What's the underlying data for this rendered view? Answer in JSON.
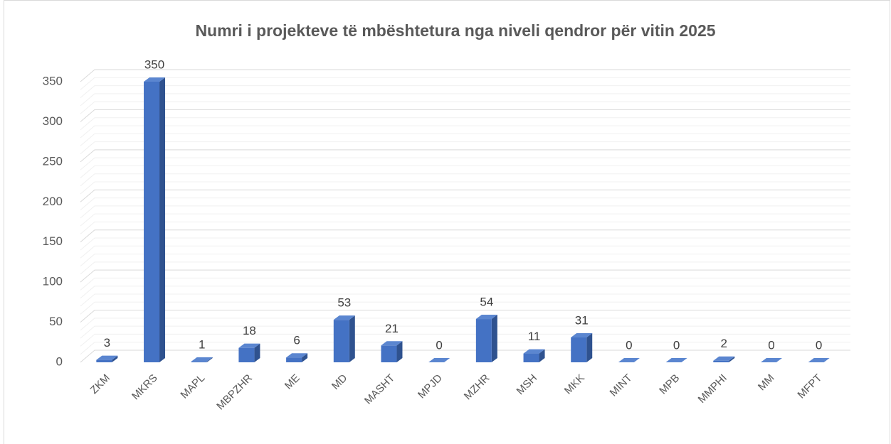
{
  "chart_data": {
    "type": "bar",
    "title": "Numri i projekteve të mbështetura nga niveli qendror për vitin 2025",
    "categories": [
      "ZKM",
      "MKRS",
      "MAPL",
      "MBPZHR",
      "ME",
      "MD",
      "MASHT",
      "MPJD",
      "MZHR",
      "MSH",
      "MKK",
      "MINT",
      "MPB",
      "MMPHI",
      "MM",
      "MFPT"
    ],
    "values": [
      3,
      350,
      1,
      18,
      6,
      53,
      21,
      0,
      54,
      11,
      31,
      0,
      0,
      2,
      0,
      0
    ],
    "color": "#4472c4",
    "ylim": [
      0,
      350
    ],
    "yticks": [
      0,
      50,
      100,
      150,
      200,
      250,
      300,
      350
    ],
    "grid": true
  }
}
